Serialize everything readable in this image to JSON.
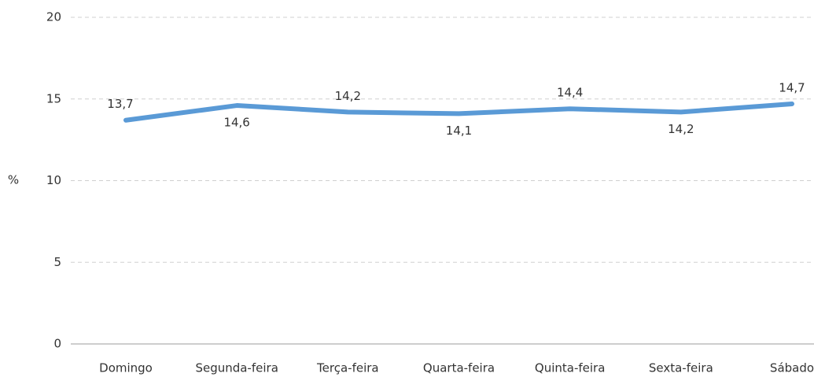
{
  "chart_data": {
    "type": "line",
    "y_label": "%",
    "categories": [
      "Domingo",
      "Segunda-feira",
      "Terça-feira",
      "Quarta-feira",
      "Quinta-feira",
      "Sexta-feira",
      "Sábado"
    ],
    "series": [
      {
        "name": "%",
        "color": "#5a9ad6",
        "values": [
          13.7,
          14.6,
          14.2,
          14.1,
          14.4,
          14.2,
          14.7
        ],
        "value_labels": [
          "13,7",
          "14,6",
          "14,2",
          "14,1",
          "14,4",
          "14,2",
          "14,7"
        ]
      }
    ],
    "ylim": [
      0,
      20
    ],
    "yticks": [
      0,
      5,
      10,
      15,
      20
    ],
    "grid": true
  }
}
